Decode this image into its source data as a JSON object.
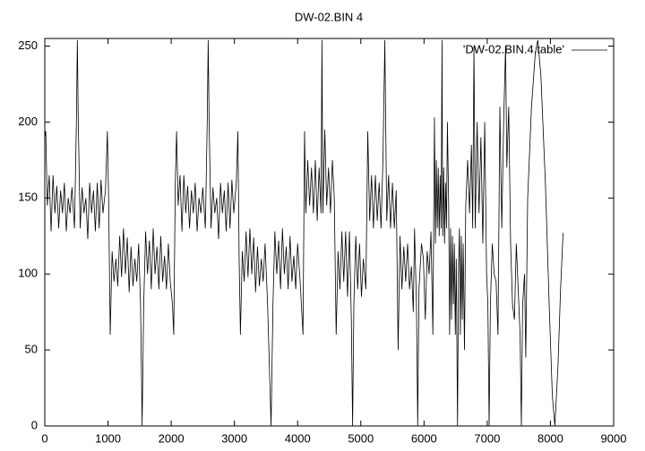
{
  "chart_data": {
    "type": "line",
    "title": "DW-02.BIN 4",
    "xlim": [
      0,
      9000
    ],
    "xticks": [
      0,
      1000,
      2000,
      3000,
      4000,
      5000,
      6000,
      7000,
      8000,
      9000
    ],
    "ylim": [
      0,
      255
    ],
    "yticks": [
      0,
      50,
      100,
      150,
      200,
      250
    ],
    "legend": "top-right",
    "x": [
      0,
      15,
      40,
      70,
      100,
      130,
      160,
      190,
      220,
      250,
      280,
      310,
      340,
      370,
      400,
      430,
      470,
      500,
      515,
      530,
      560,
      590,
      620,
      650,
      680,
      710,
      740,
      770,
      800,
      830,
      860,
      890,
      920,
      960,
      990,
      1010,
      1035,
      1065,
      1095,
      1125,
      1155,
      1185,
      1215,
      1245,
      1275,
      1305,
      1335,
      1365,
      1395,
      1425,
      1455,
      1485,
      1515,
      1540,
      1565,
      1595,
      1625,
      1655,
      1685,
      1715,
      1745,
      1775,
      1805,
      1835,
      1865,
      1895,
      1925,
      1955,
      1985,
      2020,
      2040,
      2065,
      2085,
      2110,
      2140,
      2170,
      2200,
      2230,
      2260,
      2290,
      2320,
      2350,
      2380,
      2410,
      2440,
      2470,
      2500,
      2540,
      2570,
      2585,
      2600,
      2630,
      2660,
      2690,
      2720,
      2750,
      2780,
      2810,
      2840,
      2870,
      2900,
      2930,
      2960,
      2990,
      3030,
      3055,
      3075,
      3095,
      3125,
      3155,
      3185,
      3215,
      3245,
      3275,
      3305,
      3335,
      3365,
      3395,
      3425,
      3455,
      3485,
      3525,
      3580,
      3610,
      3640,
      3670,
      3700,
      3730,
      3760,
      3790,
      3820,
      3850,
      3880,
      3910,
      3940,
      3970,
      4000,
      4040,
      4085,
      4110,
      4130,
      4160,
      4190,
      4220,
      4250,
      4280,
      4310,
      4340,
      4370,
      4385,
      4400,
      4430,
      4460,
      4490,
      4520,
      4550,
      4580,
      4610,
      4640,
      4670,
      4700,
      4730,
      4760,
      4790,
      4820,
      4850,
      4870,
      4890,
      4920,
      4950,
      4980,
      5010,
      5040,
      5080,
      5110,
      5140,
      5170,
      5200,
      5230,
      5260,
      5290,
      5320,
      5350,
      5380,
      5410,
      5440,
      5470,
      5500,
      5530,
      5560,
      5590,
      5620,
      5650,
      5680,
      5710,
      5740,
      5770,
      5800,
      5830,
      5850,
      5880,
      5900,
      5920,
      5960,
      5990,
      6020,
      6050,
      6080,
      6110,
      6140,
      6165,
      6180,
      6195,
      6210,
      6225,
      6240,
      6255,
      6270,
      6285,
      6295,
      6310,
      6325,
      6340,
      6355,
      6370,
      6390,
      6405,
      6420,
      6435,
      6450,
      6465,
      6480,
      6495,
      6510,
      6530,
      6545,
      6560,
      6575,
      6590,
      6605,
      6620,
      6640,
      6660,
      6690,
      6720,
      6750,
      6770,
      6790,
      6810,
      6840,
      6870,
      6900,
      6930,
      6960,
      6990,
      7010,
      7030,
      7050,
      7080,
      7110,
      7140,
      7170,
      7200,
      7230,
      7260,
      7290,
      7310,
      7340,
      7370,
      7400,
      7430,
      7460,
      7490,
      7520,
      7540,
      7560,
      7590,
      7610,
      7640,
      7700,
      7760,
      7800,
      7850,
      7920,
      7980,
      8030,
      8070,
      8120,
      8160,
      8200
    ],
    "series": [
      {
        "name": "'DW-02.BIN.4.table'",
        "color": "#000000",
        "values": [
          190,
          194,
          145,
          165,
          128,
          165,
          140,
          158,
          130,
          155,
          140,
          160,
          128,
          150,
          140,
          157,
          130,
          200,
          254,
          200,
          130,
          157,
          140,
          150,
          123,
          160,
          140,
          155,
          128,
          160,
          130,
          162,
          140,
          155,
          194,
          150,
          60,
          115,
          95,
          110,
          92,
          125,
          98,
          130,
          100,
          124,
          88,
          118,
          92,
          110,
          95,
          120,
          80,
          0,
          80,
          128,
          100,
          122,
          90,
          130,
          100,
          118,
          90,
          125,
          95,
          112,
          90,
          120,
          95,
          80,
          60,
          160,
          194,
          145,
          165,
          128,
          165,
          140,
          158,
          130,
          155,
          140,
          160,
          128,
          150,
          140,
          157,
          130,
          200,
          254,
          200,
          130,
          157,
          140,
          150,
          123,
          160,
          140,
          155,
          128,
          160,
          130,
          162,
          140,
          160,
          194,
          110,
          60,
          115,
          95,
          128,
          98,
          130,
          100,
          124,
          88,
          118,
          92,
          110,
          95,
          120,
          80,
          0,
          80,
          128,
          100,
          122,
          90,
          130,
          100,
          118,
          90,
          125,
          95,
          112,
          90,
          120,
          95,
          60,
          194,
          140,
          175,
          145,
          170,
          140,
          175,
          135,
          170,
          140,
          254,
          140,
          195,
          145,
          170,
          140,
          175,
          150,
          60,
          115,
          90,
          128,
          95,
          128,
          85,
          128,
          70,
          0,
          80,
          125,
          90,
          120,
          85,
          110,
          90,
          194,
          135,
          165,
          130,
          165,
          135,
          160,
          130,
          175,
          254,
          135,
          165,
          130,
          160,
          130,
          155,
          50,
          125,
          90,
          118,
          95,
          120,
          90,
          105,
          75,
          130,
          80,
          0,
          90,
          120,
          110,
          70,
          115,
          100,
          128,
          60,
          203,
          120,
          175,
          130,
          170,
          125,
          165,
          130,
          254,
          125,
          170,
          120,
          160,
          130,
          200,
          145,
          60,
          130,
          70,
          125,
          80,
          120,
          60,
          110,
          0,
          100,
          130,
          60,
          125,
          70,
          120,
          50,
          145,
          175,
          140,
          185,
          130,
          250,
          130,
          200,
          140,
          190,
          120,
          200,
          100,
          80,
          0,
          80,
          120,
          100,
          95,
          60,
          210,
          130,
          200,
          250,
          170,
          210,
          120,
          80,
          70,
          120,
          90,
          60,
          0,
          80,
          100,
          45,
          150,
          210,
          245,
          254,
          230,
          160,
          80,
          20,
          0,
          40,
          90,
          127
        ]
      }
    ]
  }
}
